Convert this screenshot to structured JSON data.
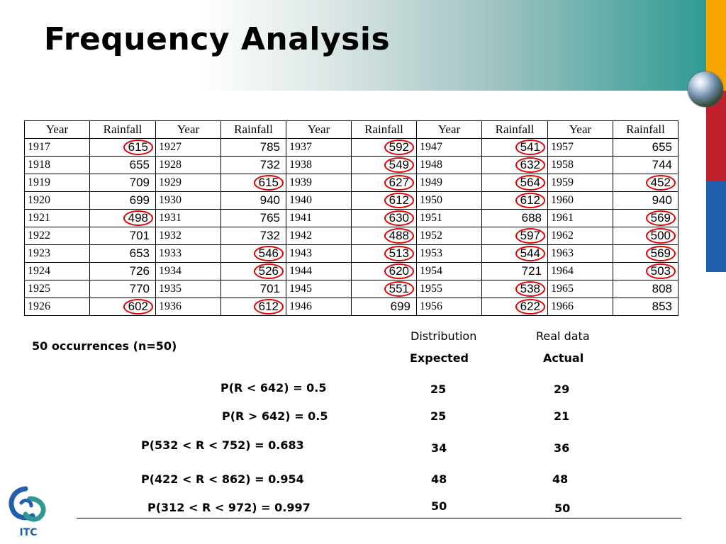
{
  "title": "Frequency Analysis",
  "table": {
    "headers": [
      "Year",
      "Rainfall",
      "Year",
      "Rainfall",
      "Year",
      "Rainfall",
      "Year",
      "Rainfall",
      "Year",
      "Rainfall"
    ],
    "rows": [
      [
        [
          "1917",
          "615",
          true
        ],
        [
          "1927",
          "785",
          false
        ],
        [
          "1937",
          "592",
          true
        ],
        [
          "1947",
          "541",
          true
        ],
        [
          "1957",
          "655",
          false
        ]
      ],
      [
        [
          "1918",
          "655",
          false
        ],
        [
          "1928",
          "732",
          false
        ],
        [
          "1938",
          "549",
          true
        ],
        [
          "1948",
          "632",
          true
        ],
        [
          "1958",
          "744",
          false
        ]
      ],
      [
        [
          "1919",
          "709",
          false
        ],
        [
          "1929",
          "615",
          true
        ],
        [
          "1939",
          "627",
          true
        ],
        [
          "1949",
          "564",
          true
        ],
        [
          "1959",
          "452",
          true
        ]
      ],
      [
        [
          "1920",
          "699",
          false
        ],
        [
          "1930",
          "940",
          false
        ],
        [
          "1940",
          "612",
          true
        ],
        [
          "1950",
          "612",
          true
        ],
        [
          "1960",
          "940",
          false
        ]
      ],
      [
        [
          "1921",
          "498",
          true
        ],
        [
          "1931",
          "765",
          false
        ],
        [
          "1941",
          "630",
          true
        ],
        [
          "1951",
          "688",
          false
        ],
        [
          "1961",
          "569",
          true
        ]
      ],
      [
        [
          "1922",
          "701",
          false
        ],
        [
          "1932",
          "732",
          false
        ],
        [
          "1942",
          "488",
          true
        ],
        [
          "1952",
          "597",
          true
        ],
        [
          "1962",
          "500",
          true
        ]
      ],
      [
        [
          "1923",
          "653",
          false
        ],
        [
          "1933",
          "546",
          true
        ],
        [
          "1943",
          "513",
          true
        ],
        [
          "1953",
          "544",
          true
        ],
        [
          "1963",
          "569",
          true
        ]
      ],
      [
        [
          "1924",
          "726",
          false
        ],
        [
          "1934",
          "526",
          true
        ],
        [
          "1944",
          "620",
          true
        ],
        [
          "1954",
          "721",
          false
        ],
        [
          "1964",
          "503",
          true
        ]
      ],
      [
        [
          "1925",
          "770",
          false
        ],
        [
          "1935",
          "701",
          false
        ],
        [
          "1945",
          "551",
          true
        ],
        [
          "1955",
          "538",
          true
        ],
        [
          "1965",
          "808",
          false
        ]
      ],
      [
        [
          "1926",
          "602",
          true
        ],
        [
          "1936",
          "612",
          true
        ],
        [
          "1946",
          "699",
          false
        ],
        [
          "1956",
          "622",
          true
        ],
        [
          "1966",
          "853",
          false
        ]
      ]
    ]
  },
  "occurrences": "50 occurrences (n=50)",
  "col_headers": {
    "distribution": "Distribution",
    "real_data": "Real data",
    "expected": "Expected",
    "actual": "Actual"
  },
  "stats": [
    {
      "label": "P(R < 642) = 0.5",
      "expected": "25",
      "actual": "29"
    },
    {
      "label": "P(R > 642) = 0.5",
      "expected": "25",
      "actual": "21"
    },
    {
      "label": "P(532 < R < 752) = 0.683",
      "expected": "34",
      "actual": "36"
    },
    {
      "label": "P(422 < R < 862) = 0.954",
      "expected": "48",
      "actual": "48"
    },
    {
      "label": "P(312 < R < 972) = 0.997",
      "expected": "50",
      "actual": "50"
    }
  ],
  "logo_text": "ITC",
  "colors": {
    "circle": "#e00000",
    "stripe_orange": "#f7a600",
    "stripe_red": "#c0202c",
    "stripe_blue": "#1f5fad",
    "header_teal": "#2e9a94"
  }
}
